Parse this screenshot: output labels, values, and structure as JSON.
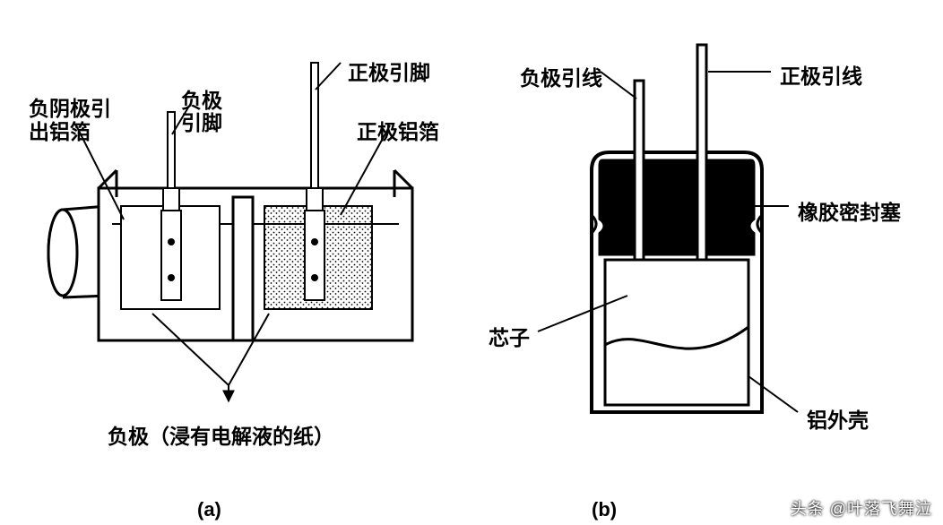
{
  "figure_a": {
    "caption": "(a)",
    "labels": {
      "cathode_foil_lead": "负阴极引\n出铝箔",
      "negative_pin": "负极\n引脚",
      "positive_pin": "正极引脚",
      "positive_foil": "正极铝箔",
      "separator": "负极（浸有电解液的纸）"
    }
  },
  "figure_b": {
    "caption": "(b)",
    "labels": {
      "negative_lead": "负极引线",
      "positive_lead": "正极引线",
      "rubber_seal": "橡胶密封塞",
      "core": "芯子",
      "aluminum_case": "铝外壳"
    }
  },
  "watermark": "头条 @叶落飞舞泣",
  "style": {
    "stroke": "#000000",
    "stroke_width_main": 3,
    "stroke_width_thin": 2,
    "dotted_fill": "#000000",
    "label_fontsize": 23,
    "caption_fontsize": 22,
    "background": "#ffffff"
  }
}
